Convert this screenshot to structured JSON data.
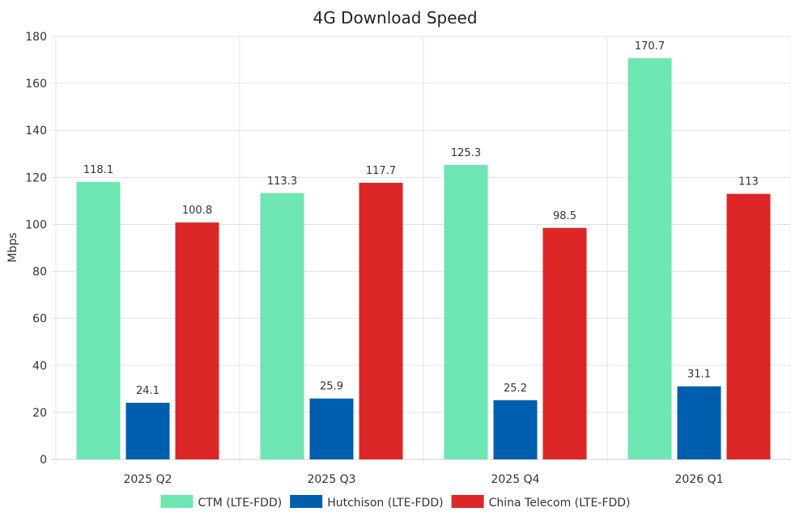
{
  "chart_data": {
    "type": "bar",
    "title": "4G Download Speed",
    "xlabel": "",
    "ylabel": "Mbps",
    "ylim": [
      0,
      180
    ],
    "yticks": [
      0,
      20,
      40,
      60,
      80,
      100,
      120,
      140,
      160,
      180
    ],
    "categories": [
      "2025 Q2",
      "2025 Q3",
      "2025 Q4",
      "2026 Q1"
    ],
    "series": [
      {
        "name": "CTM (LTE-FDD)",
        "color": "#6ee6b4",
        "values": [
          118.1,
          113.3,
          125.3,
          170.7
        ],
        "labels": [
          "118.1",
          "113.3",
          "125.3",
          "170.7"
        ]
      },
      {
        "name": "Hutchison (LTE-FDD)",
        "color": "#005eae",
        "values": [
          24.1,
          25.9,
          25.2,
          31.1
        ],
        "labels": [
          "24.1",
          "25.9",
          "25.2",
          "31.1"
        ]
      },
      {
        "name": "China Telecom (LTE-FDD)",
        "color": "#dd2626",
        "values": [
          100.8,
          117.7,
          98.5,
          113
        ],
        "labels": [
          "100.8",
          "117.7",
          "98.5",
          "113"
        ]
      }
    ],
    "grid": true,
    "legend_position": "bottom"
  }
}
